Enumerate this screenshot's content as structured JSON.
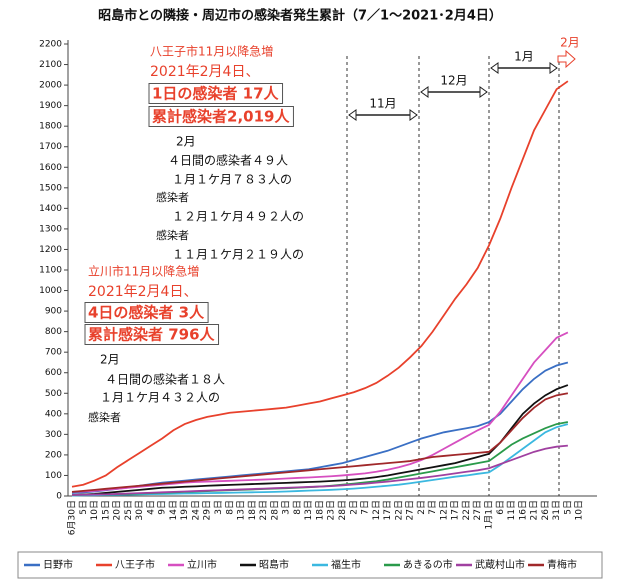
{
  "chart_data": {
    "type": "line",
    "title": "昭島市との隣接・周辺市の感染者発生累計（7／1～2021･2月4日）",
    "categories": [
      "6月30日",
      "5日",
      "10日",
      "15日",
      "20日",
      "25日",
      "30日",
      "4日",
      "9日",
      "14日",
      "19日",
      "24日",
      "29日",
      "3日",
      "8日",
      "13日",
      "18日",
      "23日",
      "28日",
      "3日",
      "8日",
      "13日",
      "18日",
      "23日",
      "28日",
      "2日",
      "7日",
      "12日",
      "17日",
      "22日",
      "27日",
      "2日",
      "7日",
      "12日",
      "17日",
      "22日",
      "27日",
      "1月1日",
      "6日",
      "11日",
      "16日",
      "21日",
      "26日",
      "31日",
      "5日",
      "10日"
    ],
    "series": [
      {
        "name": "日野市",
        "color": "#3a6fc4",
        "values": [
          15,
          18,
          22,
          28,
          35,
          42,
          50,
          58,
          65,
          70,
          75,
          80,
          85,
          90,
          95,
          100,
          105,
          110,
          115,
          120,
          125,
          130,
          140,
          150,
          160,
          175,
          190,
          205,
          220,
          240,
          260,
          280,
          295,
          310,
          320,
          330,
          340,
          360,
          400,
          460,
          520,
          570,
          610,
          635,
          650,
          null
        ]
      },
      {
        "name": "八王子市",
        "color": "#e8412c",
        "values": [
          45,
          55,
          75,
          100,
          140,
          175,
          210,
          245,
          280,
          320,
          350,
          370,
          385,
          395,
          405,
          410,
          415,
          420,
          425,
          430,
          440,
          450,
          460,
          475,
          490,
          505,
          525,
          550,
          585,
          625,
          675,
          730,
          800,
          880,
          960,
          1030,
          1110,
          1220,
          1350,
          1500,
          1640,
          1780,
          1880,
          1980,
          2019,
          null
        ]
      },
      {
        "name": "立川市",
        "color": "#d64fc0",
        "values": [
          20,
          22,
          25,
          30,
          35,
          40,
          45,
          50,
          55,
          60,
          65,
          68,
          70,
          72,
          74,
          76,
          78,
          80,
          82,
          85,
          88,
          90,
          93,
          96,
          100,
          105,
          110,
          118,
          128,
          140,
          155,
          175,
          200,
          230,
          260,
          290,
          320,
          346,
          410,
          490,
          570,
          650,
          710,
          770,
          796,
          null
        ]
      },
      {
        "name": "昭島市",
        "color": "#111111",
        "values": [
          5,
          7,
          10,
          15,
          20,
          25,
          30,
          35,
          40,
          42,
          45,
          47,
          50,
          52,
          54,
          56,
          58,
          60,
          62,
          64,
          66,
          68,
          70,
          73,
          76,
          80,
          85,
          92,
          100,
          110,
          120,
          130,
          140,
          150,
          160,
          175,
          190,
          205,
          260,
          330,
          400,
          450,
          490,
          520,
          540,
          null
        ]
      },
      {
        "name": "福生市",
        "color": "#3bb8e0",
        "values": [
          2,
          3,
          4,
          5,
          6,
          7,
          8,
          9,
          10,
          11,
          12,
          13,
          14,
          15,
          16,
          17,
          18,
          19,
          20,
          22,
          24,
          26,
          28,
          30,
          33,
          36,
          40,
          45,
          50,
          55,
          62,
          70,
          78,
          86,
          94,
          100,
          108,
          115,
          150,
          190,
          230,
          270,
          310,
          335,
          350,
          null
        ]
      },
      {
        "name": "あきるの市",
        "color": "#2a9a4a",
        "values": [
          5,
          6,
          7,
          8,
          9,
          10,
          12,
          14,
          16,
          18,
          20,
          22,
          24,
          26,
          28,
          30,
          32,
          34,
          36,
          38,
          40,
          43,
          46,
          50,
          55,
          60,
          66,
          72,
          80,
          90,
          100,
          110,
          120,
          130,
          140,
          150,
          160,
          170,
          210,
          250,
          280,
          305,
          330,
          350,
          360,
          null
        ]
      },
      {
        "name": "武蔵村山市",
        "color": "#a040a0",
        "values": [
          5,
          6,
          7,
          8,
          10,
          12,
          14,
          16,
          18,
          20,
          22,
          24,
          26,
          28,
          30,
          32,
          34,
          36,
          38,
          40,
          42,
          44,
          46,
          48,
          52,
          56,
          60,
          65,
          70,
          76,
          82,
          88,
          95,
          102,
          110,
          118,
          125,
          135,
          155,
          175,
          195,
          215,
          230,
          240,
          245,
          null
        ]
      },
      {
        "name": "青梅市",
        "color": "#a0282a",
        "values": [
          20,
          25,
          30,
          35,
          40,
          45,
          50,
          55,
          60,
          65,
          70,
          75,
          80,
          85,
          90,
          95,
          100,
          105,
          110,
          115,
          120,
          125,
          130,
          135,
          140,
          145,
          150,
          155,
          160,
          165,
          170,
          180,
          190,
          195,
          200,
          205,
          210,
          215,
          260,
          320,
          380,
          430,
          470,
          490,
          500,
          null
        ]
      }
    ],
    "ylim": [
      0,
      2200
    ],
    "yticks": [
      0,
      100,
      200,
      300,
      400,
      500,
      600,
      700,
      800,
      900,
      1000,
      1100,
      1200,
      1300,
      1400,
      1500,
      1600,
      1700,
      1800,
      1900,
      2000,
      2100,
      2200
    ],
    "grid": false,
    "periods": [
      "11月",
      "12月",
      "1月",
      "2月"
    ],
    "annotations": [
      {
        "text": "八王子市11月以降急増",
        "color": "#e8412c"
      },
      {
        "text": "2021年2月4日、",
        "color": "#e8412c"
      },
      {
        "text": "1日の感染者 17人",
        "color": "#e8412c",
        "boxed": true
      },
      {
        "text": "累計感染者2,019人",
        "color": "#e8412c",
        "boxed": true
      },
      {
        "text": "2月",
        "color": "#111111"
      },
      {
        "text": "４日間の感染者４９人",
        "color": "#111111"
      },
      {
        "text": "１月１ケ月７８３人の",
        "color": "#111111"
      },
      {
        "text": "感染者",
        "color": "#111111"
      },
      {
        "text": "１２月１ケ月４９２人の",
        "color": "#111111"
      },
      {
        "text": "感染者",
        "color": "#111111"
      },
      {
        "text": "１１月１ケ月２１９人の",
        "color": "#111111"
      },
      {
        "text": "立川市11月以降急増",
        "color": "#e8412c"
      },
      {
        "text": "2021年2月4日、",
        "color": "#e8412c"
      },
      {
        "text": "4日の感染者 3人",
        "color": "#e8412c",
        "boxed": true
      },
      {
        "text": "累計感染者 796人",
        "color": "#e8412c",
        "boxed": true
      },
      {
        "text": "2月",
        "color": "#111111"
      },
      {
        "text": "４日間の感染者１８人",
        "color": "#111111"
      },
      {
        "text": "１月１ケ月４３２人の",
        "color": "#111111"
      },
      {
        "text": "感染者",
        "color": "#111111"
      }
    ]
  }
}
